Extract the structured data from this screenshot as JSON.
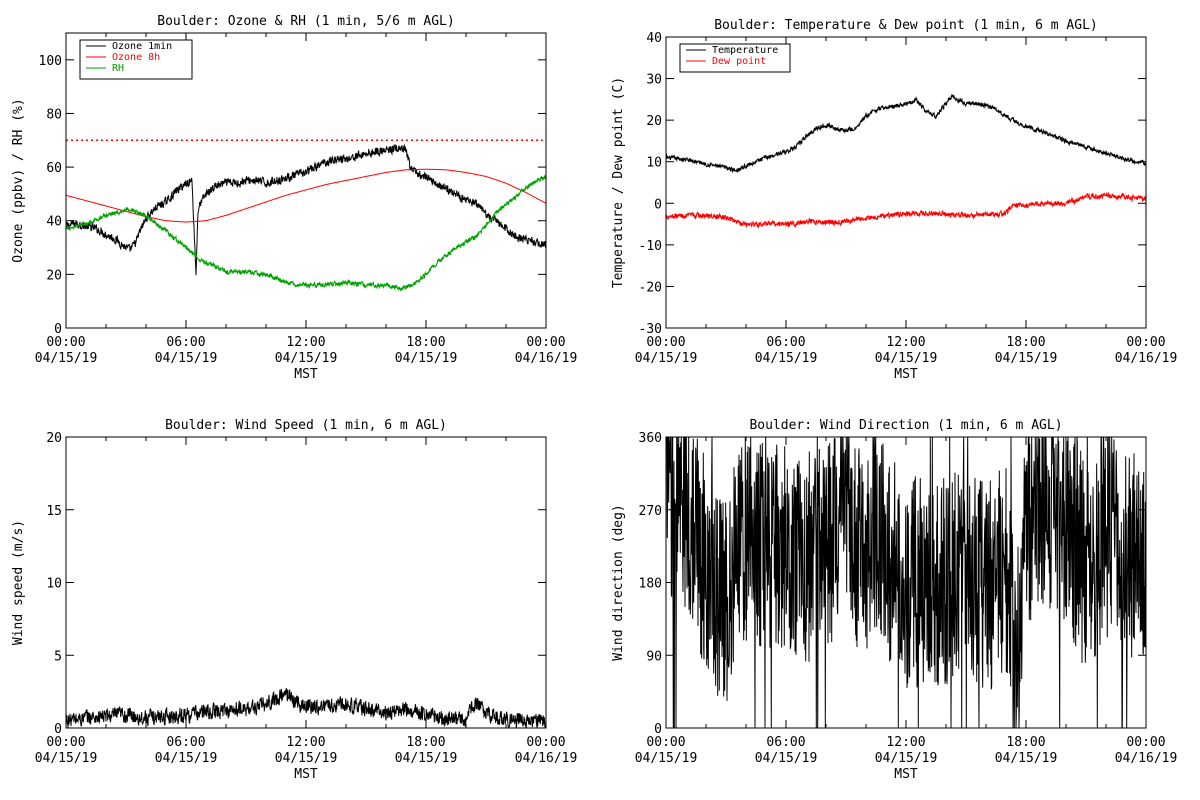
{
  "chart_data": [
    {
      "id": "ozone_rh",
      "type": "line",
      "title": "Boulder: Ozone & RH (1 min, 5/6 m AGL)",
      "xlabel": "MST",
      "ylabel": "Ozone (ppbv) / RH (%)",
      "xlim": [
        0,
        24
      ],
      "ylim": [
        0,
        110
      ],
      "yticks": [
        0,
        20,
        40,
        60,
        80,
        100
      ],
      "xtick_labels": [
        [
          "00:00",
          "04/15/19"
        ],
        [
          "06:00",
          "04/15/19"
        ],
        [
          "12:00",
          "04/15/19"
        ],
        [
          "18:00",
          "04/15/19"
        ],
        [
          "00:00",
          "04/16/19"
        ]
      ],
      "legend_position": "top-left",
      "reference_lines": [
        {
          "y": 70,
          "color": "#ff0000",
          "style": "dotted"
        }
      ],
      "series": [
        {
          "name": "Ozone 1min",
          "color": "#000000",
          "noise": 1.5,
          "x": [
            0,
            0.5,
            1,
            1.5,
            2,
            2.5,
            3,
            3.2,
            3.5,
            3.7,
            4,
            4.5,
            5,
            5.5,
            6,
            6.3,
            6.5,
            6.6,
            6.7,
            7,
            7.5,
            8,
            8.5,
            9,
            9.5,
            10,
            10.5,
            11,
            11.5,
            12,
            12.5,
            13,
            13.5,
            14,
            14.5,
            15,
            15.5,
            16,
            16.5,
            17,
            17.2,
            17.5,
            18,
            18.5,
            19,
            19.5,
            20,
            20.5,
            21,
            21.5,
            22,
            22.5,
            23,
            23.5,
            24
          ],
          "y": [
            38,
            39,
            38,
            37,
            35,
            33,
            30,
            29,
            32,
            36,
            41,
            45,
            47,
            51,
            54,
            55,
            20,
            44,
            46,
            50,
            53,
            54,
            54,
            55,
            55,
            54,
            55,
            56,
            57,
            58,
            60,
            62,
            63,
            63,
            64,
            65,
            66,
            66,
            67,
            66,
            60,
            58,
            56,
            54,
            52,
            50,
            48,
            46,
            42,
            40,
            37,
            34,
            33,
            32,
            31
          ]
        },
        {
          "name": "Ozone 8h",
          "color": "#ff0000",
          "noise": 0,
          "x": [
            0,
            1,
            2,
            3,
            4,
            5,
            6,
            7,
            8,
            9,
            10,
            11,
            12,
            13,
            14,
            15,
            16,
            17,
            18,
            19,
            20,
            21,
            22,
            23,
            24
          ],
          "y": [
            49.5,
            47.5,
            45.5,
            43.5,
            41.5,
            40,
            39.5,
            40,
            42,
            44.5,
            47,
            49.5,
            51.5,
            53.5,
            55,
            56.5,
            58,
            59,
            59.2,
            59,
            58,
            56.5,
            54,
            50.5,
            46.5
          ]
        },
        {
          "name": "RH",
          "color": "#00a000",
          "noise": 0.8,
          "x": [
            0,
            1,
            2,
            3,
            4,
            5,
            6,
            6.5,
            7,
            7.5,
            8,
            9,
            10,
            11,
            11.5,
            12,
            13,
            14,
            15,
            16,
            16.5,
            17,
            17.5,
            18,
            18.5,
            19,
            19.5,
            20,
            20.5,
            21,
            21.5,
            22,
            22.5,
            23,
            23.5,
            24
          ],
          "y": [
            37,
            39,
            42,
            44,
            42,
            36,
            30,
            27,
            24,
            23,
            21,
            21,
            20,
            17,
            16,
            16,
            16,
            17,
            16,
            16,
            15,
            15,
            17,
            20,
            24,
            27,
            30,
            32,
            34,
            38,
            43,
            46,
            49,
            52,
            55,
            56
          ]
        }
      ]
    },
    {
      "id": "temp_dew",
      "type": "line",
      "title": "Boulder: Temperature & Dew point (1 min, 6 m AGL)",
      "xlabel": "MST",
      "ylabel": "Temperature / Dew point (C)",
      "xlim": [
        0,
        24
      ],
      "ylim": [
        -30,
        40
      ],
      "yticks": [
        -30,
        -20,
        -10,
        0,
        10,
        20,
        30,
        40
      ],
      "xtick_labels": [
        [
          "00:00",
          "04/15/19"
        ],
        [
          "06:00",
          "04/15/19"
        ],
        [
          "12:00",
          "04/15/19"
        ],
        [
          "18:00",
          "04/15/19"
        ],
        [
          "00:00",
          "04/16/19"
        ]
      ],
      "legend_position": "top-left",
      "reference_lines": [],
      "series": [
        {
          "name": "Temperature",
          "color": "#000000",
          "noise": 0.5,
          "x": [
            0,
            1,
            2,
            3,
            3.5,
            4,
            5,
            6,
            6.5,
            7,
            7.5,
            8,
            8.5,
            9,
            9.5,
            10,
            10.5,
            11,
            11.5,
            12,
            12.5,
            13,
            13.5,
            14,
            14.3,
            14.5,
            15,
            15.5,
            16,
            16.5,
            17,
            17.5,
            18,
            19,
            20,
            21,
            22,
            23,
            24
          ],
          "y": [
            11,
            10.5,
            9.5,
            8.5,
            8,
            9,
            11,
            12.5,
            13.5,
            16,
            18,
            19,
            18,
            17.5,
            18,
            21,
            22.5,
            23,
            23.5,
            24,
            25,
            22,
            21,
            24,
            26,
            25,
            24,
            24,
            23.5,
            22.5,
            21,
            19.5,
            18.5,
            17,
            15,
            13.5,
            12,
            10.5,
            9.5
          ]
        },
        {
          "name": "Dew point",
          "color": "#ff0000",
          "noise": 0.6,
          "x": [
            0,
            1,
            2,
            3,
            4,
            5,
            6,
            7,
            8,
            9,
            10,
            11,
            12,
            13,
            14,
            15,
            16,
            17,
            17.3,
            18,
            19,
            20,
            21,
            22,
            23,
            24
          ],
          "y": [
            -3,
            -3,
            -3,
            -3.5,
            -5,
            -5,
            -5,
            -4.5,
            -4.5,
            -4.5,
            -3.5,
            -3,
            -2.5,
            -2.5,
            -2.5,
            -3,
            -2.5,
            -2.5,
            -0.5,
            -0.5,
            0,
            0,
            1.5,
            2,
            1.5,
            1
          ]
        }
      ]
    },
    {
      "id": "wind_speed",
      "type": "line",
      "title": "Boulder: Wind Speed (1 min, 6 m AGL)",
      "xlabel": "MST",
      "ylabel": "Wind speed (m/s)",
      "xlim": [
        0,
        24
      ],
      "ylim": [
        0,
        20
      ],
      "yticks": [
        0,
        5,
        10,
        15,
        20
      ],
      "xtick_labels": [
        [
          "00:00",
          "04/15/19"
        ],
        [
          "06:00",
          "04/15/19"
        ],
        [
          "12:00",
          "04/15/19"
        ],
        [
          "18:00",
          "04/15/19"
        ],
        [
          "00:00",
          "04/16/19"
        ]
      ],
      "legend_position": "",
      "reference_lines": [],
      "series": [
        {
          "name": "",
          "color": "#000000",
          "noise": 0.5,
          "floor": 0,
          "x": [
            0,
            1,
            2,
            3,
            4,
            5,
            6,
            7,
            8,
            9,
            10,
            10.5,
            11,
            11.5,
            12,
            13,
            14,
            15,
            16,
            17,
            18,
            19,
            20,
            20.5,
            21,
            22,
            23,
            24
          ],
          "y": [
            0.5,
            0.7,
            0.8,
            0.9,
            0.7,
            0.8,
            0.9,
            1.1,
            1.2,
            1.3,
            1.6,
            2,
            2.4,
            1.8,
            1.5,
            1.5,
            1.7,
            1.3,
            1,
            1.3,
            1,
            0.6,
            0.6,
            1.8,
            1,
            0.6,
            0.4,
            0.5
          ]
        }
      ]
    },
    {
      "id": "wind_dir",
      "type": "line",
      "title": "Boulder: Wind Direction (1 min, 6 m AGL)",
      "xlabel": "MST",
      "ylabel": "Wind direction (deg)",
      "xlim": [
        0,
        24
      ],
      "ylim": [
        0,
        360
      ],
      "yticks": [
        0,
        90,
        180,
        270,
        360
      ],
      "xtick_labels": [
        [
          "00:00",
          "04/15/19"
        ],
        [
          "06:00",
          "04/15/19"
        ],
        [
          "12:00",
          "04/15/19"
        ],
        [
          "18:00",
          "04/15/19"
        ],
        [
          "00:00",
          "04/16/19"
        ]
      ],
      "legend_position": "",
      "reference_lines": [],
      "series": [
        {
          "name": "",
          "color": "#000000",
          "noise": 60,
          "floor": 0,
          "ceil": 360,
          "x": [
            0,
            1,
            2,
            3,
            3.5,
            4,
            5,
            6,
            7,
            8,
            9,
            9.5,
            10,
            11,
            12,
            13,
            14,
            15,
            16,
            17,
            17.5,
            18,
            19,
            20,
            21,
            22,
            23,
            24
          ],
          "y": [
            300,
            280,
            200,
            150,
            230,
            220,
            230,
            220,
            210,
            230,
            250,
            220,
            230,
            220,
            170,
            190,
            180,
            190,
            170,
            200,
            60,
            260,
            280,
            260,
            200,
            240,
            220,
            200
          ]
        }
      ]
    }
  ]
}
